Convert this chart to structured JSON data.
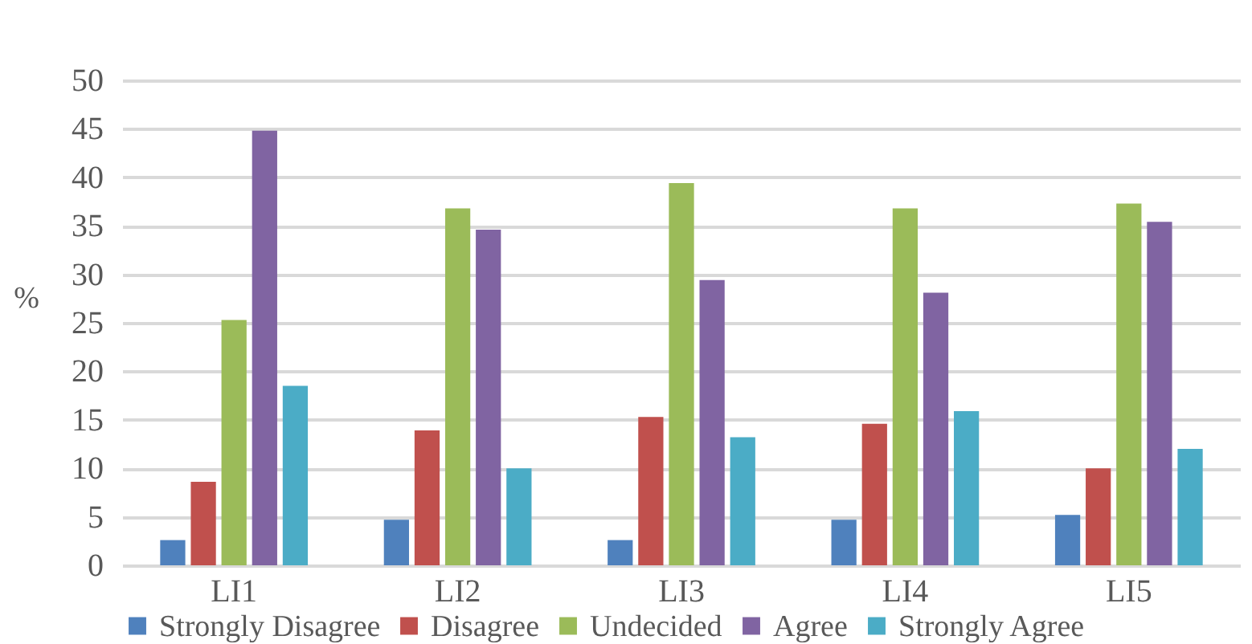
{
  "chart_data": {
    "type": "bar",
    "ylabel": "%",
    "categories": [
      "LI1",
      "LI2",
      "LI3",
      "LI4",
      "LI5"
    ],
    "series": [
      {
        "name": "Strongly Disagree",
        "color": "#4f81bd",
        "values": [
          2.6,
          4.7,
          2.6,
          4.7,
          5.2
        ]
      },
      {
        "name": "Disagree",
        "color": "#c0504d",
        "values": [
          8.6,
          13.9,
          15.3,
          14.6,
          10.0
        ]
      },
      {
        "name": "Undecided",
        "color": "#9bbb59",
        "values": [
          25.3,
          36.8,
          39.4,
          36.8,
          37.3
        ]
      },
      {
        "name": "Agree",
        "color": "#8064a2",
        "values": [
          44.8,
          34.6,
          29.4,
          28.1,
          35.4
        ]
      },
      {
        "name": "Strongly Agree",
        "color": "#4bacc6",
        "values": [
          18.5,
          10.0,
          13.2,
          15.9,
          12.0
        ]
      }
    ],
    "ylim": [
      0,
      50
    ],
    "yticks": [
      0,
      5,
      10,
      15,
      20,
      25,
      30,
      35,
      40,
      45,
      50
    ],
    "grid": "y",
    "legend": "bottom"
  }
}
